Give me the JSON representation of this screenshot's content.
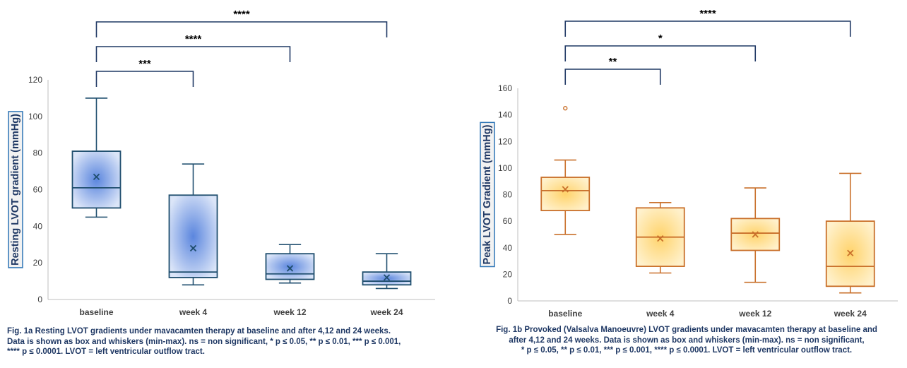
{
  "chart_data": [
    {
      "type": "box",
      "ylabel": "Resting LVOT gradient (mmHg)",
      "categories": [
        "baseline",
        "week 4",
        "week 12",
        "week 24"
      ],
      "ylim": [
        0,
        120
      ],
      "yticks": [
        0,
        20,
        40,
        60,
        80,
        100,
        120
      ],
      "grid": false,
      "colors": {
        "box_fill": "#c5d3f2",
        "box_center": "#5b86de",
        "stroke": "#1f4e6e",
        "label_border": "#2e75b6"
      },
      "boxes": [
        {
          "category": "baseline",
          "min": 45,
          "q1": 50,
          "median": 61,
          "q3": 81,
          "max": 110,
          "mean": 67,
          "outliers": []
        },
        {
          "category": "week 4",
          "min": 8,
          "q1": 12,
          "median": 15,
          "q3": 57,
          "max": 74,
          "mean": 28,
          "outliers": []
        },
        {
          "category": "week 12",
          "min": 9,
          "q1": 11,
          "median": 14,
          "q3": 25,
          "max": 30,
          "mean": 17,
          "outliers": []
        },
        {
          "category": "week 24",
          "min": 6,
          "q1": 8,
          "median": 10,
          "q3": 15,
          "max": 25,
          "mean": 12,
          "outliers": []
        }
      ],
      "significance": [
        {
          "from": "baseline",
          "to": "week 4",
          "label": "***"
        },
        {
          "from": "baseline",
          "to": "week 12",
          "label": "****"
        },
        {
          "from": "baseline",
          "to": "week 24",
          "label": "****"
        }
      ]
    },
    {
      "type": "box",
      "ylabel": "Peak LVOT Gradient (mmHg)",
      "categories": [
        "baseline",
        "week 4",
        "week 12",
        "week 24"
      ],
      "ylim": [
        0,
        160
      ],
      "yticks": [
        0,
        20,
        40,
        60,
        80,
        100,
        120,
        140,
        160
      ],
      "grid": false,
      "colors": {
        "box_fill": "#fde9b8",
        "box_center": "#ffd36b",
        "stroke": "#c9702b",
        "label_border": "#2e75b6"
      },
      "boxes": [
        {
          "category": "baseline",
          "min": 50,
          "q1": 68,
          "median": 83,
          "q3": 93,
          "max": 106,
          "mean": 84,
          "outliers": [
            145
          ]
        },
        {
          "category": "week 4",
          "min": 21,
          "q1": 26,
          "median": 48,
          "q3": 70,
          "max": 74,
          "mean": 47,
          "outliers": []
        },
        {
          "category": "week 12",
          "min": 14,
          "q1": 38,
          "median": 51,
          "q3": 62,
          "max": 85,
          "mean": 50,
          "outliers": []
        },
        {
          "category": "week 24",
          "min": 6,
          "q1": 11,
          "median": 26,
          "q3": 60,
          "max": 96,
          "mean": 36,
          "outliers": []
        }
      ],
      "significance": [
        {
          "from": "baseline",
          "to": "week 4",
          "label": "**"
        },
        {
          "from": "baseline",
          "to": "week 12",
          "label": "*"
        },
        {
          "from": "baseline",
          "to": "week 24",
          "label": "****"
        }
      ]
    }
  ],
  "captions": {
    "a": [
      "Fig. 1a Resting LVOT gradients under mavacamten therapy at baseline and after 4,12 and 24 weeks.",
      "Data is shown as box and whiskers (min-max). ns = non significant, * p ≤ 0.05, ** p ≤ 0.01, *** p ≤ 0.001,",
      "**** p ≤ 0.0001. LVOT = left ventricular outflow tract."
    ],
    "b": [
      "Fig. 1b Provoked (Valsalva Manoeuvre) LVOT gradients under mavacamten therapy at baseline and",
      "after 4,12 and 24 weeks. Data is shown as box and whiskers (min-max). ns = non significant,",
      "* p ≤ 0.05, ** p ≤ 0.01, *** p ≤ 0.001, **** p ≤ 0.0001. LVOT = left ventricular outflow tract."
    ]
  }
}
